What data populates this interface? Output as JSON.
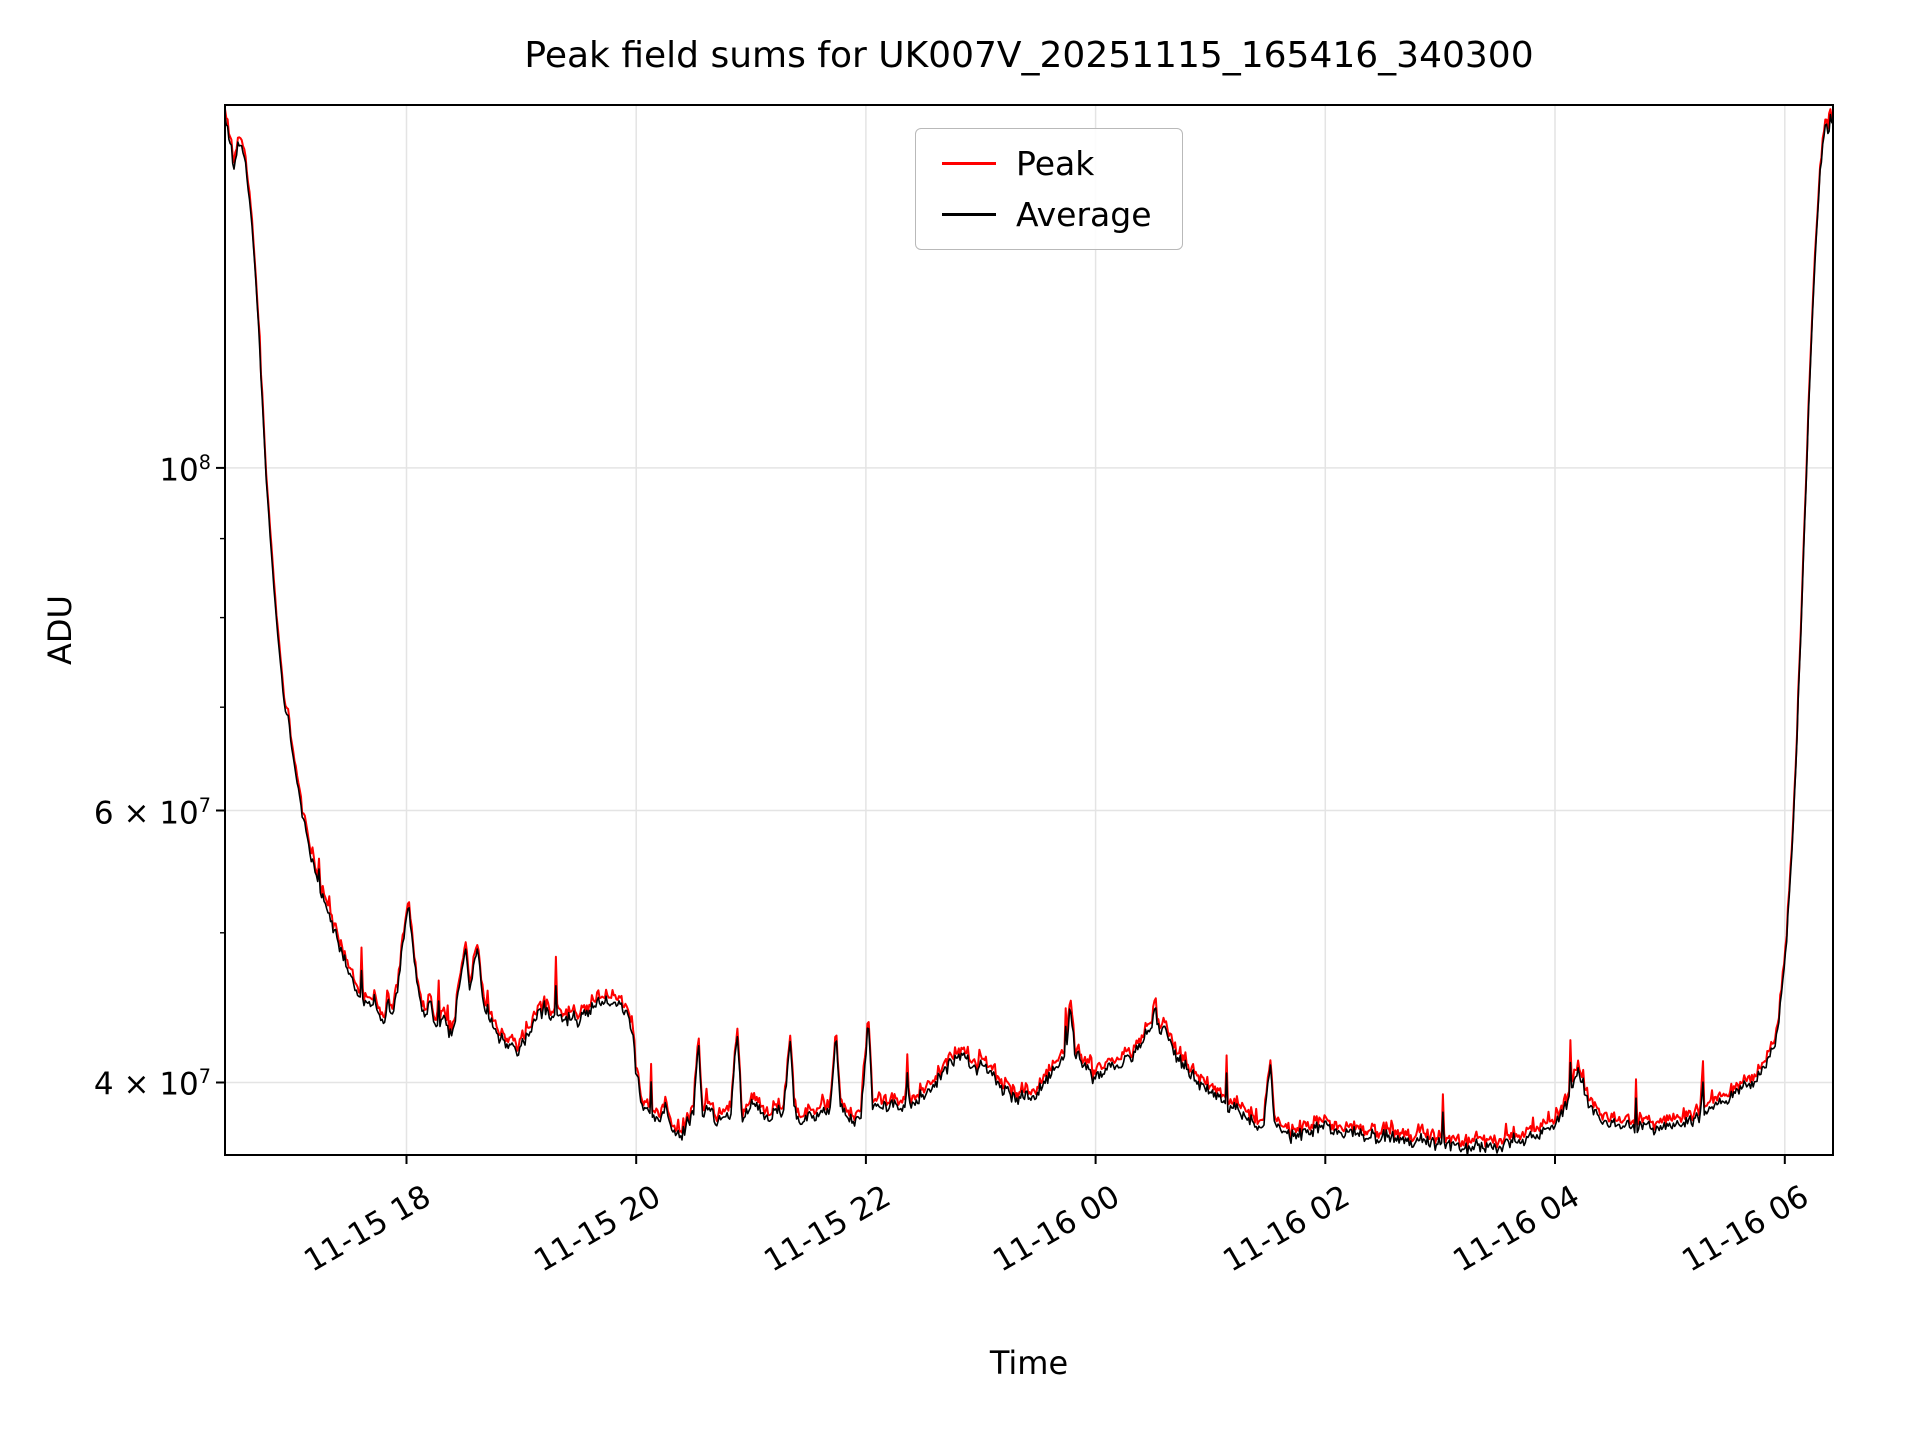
{
  "chart_data": {
    "type": "line",
    "title": "Peak field sums for UK007V_20251115_165416_340300",
    "xlabel": "Time",
    "ylabel": "ADU",
    "yscale": "log",
    "grid": true,
    "legend_position": "upper center",
    "x_domain_hours": [
      16.42,
      30.42
    ],
    "y_range": [
      35900000,
      171800000
    ],
    "x_ticks": [
      {
        "t": 18,
        "label": "11-15 18"
      },
      {
        "t": 20,
        "label": "11-15 20"
      },
      {
        "t": 22,
        "label": "11-15 22"
      },
      {
        "t": 24,
        "label": "11-16 00"
      },
      {
        "t": 26,
        "label": "11-16 02"
      },
      {
        "t": 28,
        "label": "11-16 04"
      },
      {
        "t": 30,
        "label": "11-16 06"
      }
    ],
    "y_ticks": [
      {
        "value": 40000000,
        "label": "4 × 10^7"
      },
      {
        "value": 60000000,
        "label": "6 × 10^7"
      },
      {
        "value": 100000000,
        "label": "10^8"
      }
    ],
    "y_minor_ticks": [
      50000000,
      70000000,
      80000000,
      90000000
    ],
    "series": [
      {
        "name": "Peak",
        "color": "#ff0000"
      },
      {
        "name": "Average",
        "color": "#000000"
      }
    ],
    "peak_ratio": 1.006,
    "average_keypoints_1e7": [
      [
        16.42,
        16.9
      ],
      [
        16.47,
        16.2
      ],
      [
        16.5,
        15.6
      ],
      [
        16.53,
        16.3
      ],
      [
        16.58,
        16.1
      ],
      [
        16.62,
        15.3
      ],
      [
        16.66,
        14.2
      ],
      [
        16.7,
        12.8
      ],
      [
        16.74,
        11.2
      ],
      [
        16.78,
        9.8
      ],
      [
        16.82,
        8.9
      ],
      [
        16.86,
        8.1
      ],
      [
        16.9,
        7.5
      ],
      [
        16.94,
        7.0
      ],
      [
        16.97,
        6.9
      ],
      [
        17.0,
        6.6
      ],
      [
        17.04,
        6.3
      ],
      [
        17.08,
        6.05
      ],
      [
        17.12,
        5.85
      ],
      [
        17.16,
        5.65
      ],
      [
        17.2,
        5.5
      ],
      [
        17.26,
        5.3
      ],
      [
        17.32,
        5.15
      ],
      [
        17.38,
        5.0
      ],
      [
        17.44,
        4.85
      ],
      [
        17.5,
        4.72
      ],
      [
        17.56,
        4.6
      ],
      [
        17.62,
        4.52
      ],
      [
        17.68,
        4.48
      ],
      [
        17.72,
        4.55
      ],
      [
        17.76,
        4.42
      ],
      [
        17.8,
        4.38
      ],
      [
        17.84,
        4.5
      ],
      [
        17.88,
        4.42
      ],
      [
        17.92,
        4.6
      ],
      [
        17.96,
        4.85
      ],
      [
        18.0,
        5.1
      ],
      [
        18.02,
        5.18
      ],
      [
        18.05,
        4.95
      ],
      [
        18.08,
        4.7
      ],
      [
        18.12,
        4.5
      ],
      [
        18.16,
        4.42
      ],
      [
        18.2,
        4.52
      ],
      [
        18.24,
        4.38
      ],
      [
        18.28,
        4.3
      ],
      [
        18.32,
        4.42
      ],
      [
        18.36,
        4.32
      ],
      [
        18.4,
        4.28
      ],
      [
        18.44,
        4.5
      ],
      [
        18.48,
        4.72
      ],
      [
        18.52,
        4.88
      ],
      [
        18.55,
        4.6
      ],
      [
        18.58,
        4.75
      ],
      [
        18.62,
        4.9
      ],
      [
        18.65,
        4.65
      ],
      [
        18.68,
        4.45
      ],
      [
        18.72,
        4.38
      ],
      [
        18.78,
        4.32
      ],
      [
        18.84,
        4.26
      ],
      [
        18.9,
        4.22
      ],
      [
        18.96,
        4.2
      ],
      [
        19.02,
        4.25
      ],
      [
        19.08,
        4.32
      ],
      [
        19.14,
        4.4
      ],
      [
        19.2,
        4.48
      ],
      [
        19.26,
        4.4
      ],
      [
        19.32,
        4.45
      ],
      [
        19.38,
        4.38
      ],
      [
        19.44,
        4.42
      ],
      [
        19.5,
        4.38
      ],
      [
        19.56,
        4.42
      ],
      [
        19.62,
        4.46
      ],
      [
        19.68,
        4.5
      ],
      [
        19.74,
        4.52
      ],
      [
        19.8,
        4.48
      ],
      [
        19.86,
        4.5
      ],
      [
        19.92,
        4.45
      ],
      [
        19.97,
        4.3
      ],
      [
        20.0,
        4.05
      ],
      [
        20.04,
        3.92
      ],
      [
        20.08,
        3.85
      ],
      [
        20.14,
        3.8
      ],
      [
        20.2,
        3.78
      ],
      [
        20.26,
        3.85
      ],
      [
        20.32,
        3.72
      ],
      [
        20.38,
        3.68
      ],
      [
        20.44,
        3.76
      ],
      [
        20.5,
        3.82
      ],
      [
        20.54,
        4.25
      ],
      [
        20.58,
        3.8
      ],
      [
        20.64,
        3.85
      ],
      [
        20.7,
        3.78
      ],
      [
        20.76,
        3.82
      ],
      [
        20.82,
        3.78
      ],
      [
        20.88,
        4.3
      ],
      [
        20.92,
        3.8
      ],
      [
        20.98,
        3.84
      ],
      [
        21.04,
        3.88
      ],
      [
        21.1,
        3.82
      ],
      [
        21.16,
        3.78
      ],
      [
        21.22,
        3.84
      ],
      [
        21.28,
        3.8
      ],
      [
        21.34,
        4.28
      ],
      [
        21.38,
        3.82
      ],
      [
        21.44,
        3.78
      ],
      [
        21.5,
        3.82
      ],
      [
        21.56,
        3.78
      ],
      [
        21.62,
        3.84
      ],
      [
        21.68,
        3.8
      ],
      [
        21.74,
        4.3
      ],
      [
        21.78,
        3.84
      ],
      [
        21.84,
        3.8
      ],
      [
        21.9,
        3.78
      ],
      [
        21.96,
        3.82
      ],
      [
        22.02,
        4.38
      ],
      [
        22.06,
        3.84
      ],
      [
        22.12,
        3.88
      ],
      [
        22.18,
        3.84
      ],
      [
        22.24,
        3.88
      ],
      [
        22.3,
        3.84
      ],
      [
        22.36,
        3.9
      ],
      [
        22.42,
        3.86
      ],
      [
        22.48,
        3.92
      ],
      [
        22.54,
        3.96
      ],
      [
        22.6,
        4.0
      ],
      [
        22.66,
        4.05
      ],
      [
        22.72,
        4.1
      ],
      [
        22.78,
        4.15
      ],
      [
        22.84,
        4.18
      ],
      [
        22.9,
        4.12
      ],
      [
        22.96,
        4.08
      ],
      [
        23.02,
        4.12
      ],
      [
        23.08,
        4.05
      ],
      [
        23.14,
        4.0
      ],
      [
        23.2,
        3.96
      ],
      [
        23.26,
        3.92
      ],
      [
        23.32,
        3.9
      ],
      [
        23.38,
        3.94
      ],
      [
        23.44,
        3.9
      ],
      [
        23.5,
        3.95
      ],
      [
        23.56,
        4.0
      ],
      [
        23.62,
        4.05
      ],
      [
        23.68,
        4.1
      ],
      [
        23.74,
        4.15
      ],
      [
        23.78,
        4.5
      ],
      [
        23.82,
        4.2
      ],
      [
        23.88,
        4.12
      ],
      [
        23.94,
        4.05
      ],
      [
        24.0,
        4.02
      ],
      [
        24.06,
        4.06
      ],
      [
        24.12,
        4.1
      ],
      [
        24.18,
        4.08
      ],
      [
        24.24,
        4.12
      ],
      [
        24.3,
        4.16
      ],
      [
        24.36,
        4.2
      ],
      [
        24.42,
        4.28
      ],
      [
        24.48,
        4.35
      ],
      [
        24.52,
        4.45
      ],
      [
        24.56,
        4.3
      ],
      [
        24.6,
        4.38
      ],
      [
        24.64,
        4.25
      ],
      [
        24.68,
        4.18
      ],
      [
        24.74,
        4.12
      ],
      [
        24.8,
        4.08
      ],
      [
        24.86,
        4.02
      ],
      [
        24.92,
        3.98
      ],
      [
        24.98,
        3.95
      ],
      [
        25.04,
        3.92
      ],
      [
        25.1,
        3.9
      ],
      [
        25.16,
        3.86
      ],
      [
        25.22,
        3.84
      ],
      [
        25.28,
        3.8
      ],
      [
        25.34,
        3.78
      ],
      [
        25.4,
        3.76
      ],
      [
        25.46,
        3.75
      ],
      [
        25.52,
        4.12
      ],
      [
        25.56,
        3.76
      ],
      [
        25.62,
        3.72
      ],
      [
        25.68,
        3.7
      ],
      [
        25.74,
        3.68
      ],
      [
        25.8,
        3.7
      ],
      [
        25.86,
        3.72
      ],
      [
        25.92,
        3.74
      ],
      [
        25.98,
        3.76
      ],
      [
        26.04,
        3.74
      ],
      [
        26.1,
        3.72
      ],
      [
        26.16,
        3.7
      ],
      [
        26.22,
        3.72
      ],
      [
        26.28,
        3.7
      ],
      [
        26.34,
        3.68
      ],
      [
        26.4,
        3.7
      ],
      [
        26.46,
        3.68
      ],
      [
        26.52,
        3.7
      ],
      [
        26.58,
        3.68
      ],
      [
        26.64,
        3.66
      ],
      [
        26.7,
        3.68
      ],
      [
        26.76,
        3.66
      ],
      [
        26.82,
        3.68
      ],
      [
        26.88,
        3.66
      ],
      [
        26.94,
        3.64
      ],
      [
        27.0,
        3.66
      ],
      [
        27.06,
        3.64
      ],
      [
        27.12,
        3.66
      ],
      [
        27.18,
        3.63
      ],
      [
        27.24,
        3.62
      ],
      [
        27.3,
        3.64
      ],
      [
        27.36,
        3.62
      ],
      [
        27.42,
        3.64
      ],
      [
        27.48,
        3.62
      ],
      [
        27.54,
        3.64
      ],
      [
        27.6,
        3.66
      ],
      [
        27.66,
        3.68
      ],
      [
        27.72,
        3.66
      ],
      [
        27.78,
        3.68
      ],
      [
        27.84,
        3.7
      ],
      [
        27.9,
        3.72
      ],
      [
        27.96,
        3.74
      ],
      [
        28.02,
        3.78
      ],
      [
        28.08,
        3.85
      ],
      [
        28.14,
        3.95
      ],
      [
        28.2,
        4.08
      ],
      [
        28.24,
        4.0
      ],
      [
        28.28,
        3.9
      ],
      [
        28.34,
        3.82
      ],
      [
        28.4,
        3.78
      ],
      [
        28.46,
        3.76
      ],
      [
        28.52,
        3.75
      ],
      [
        28.58,
        3.74
      ],
      [
        28.64,
        3.76
      ],
      [
        28.7,
        3.74
      ],
      [
        28.76,
        3.75
      ],
      [
        28.82,
        3.74
      ],
      [
        28.88,
        3.73
      ],
      [
        28.94,
        3.75
      ],
      [
        29.0,
        3.76
      ],
      [
        29.06,
        3.75
      ],
      [
        29.12,
        3.77
      ],
      [
        29.18,
        3.78
      ],
      [
        29.24,
        3.8
      ],
      [
        29.3,
        3.82
      ],
      [
        29.36,
        3.85
      ],
      [
        29.42,
        3.88
      ],
      [
        29.48,
        3.9
      ],
      [
        29.54,
        3.92
      ],
      [
        29.6,
        3.95
      ],
      [
        29.66,
        3.98
      ],
      [
        29.72,
        4.0
      ],
      [
        29.78,
        4.05
      ],
      [
        29.84,
        4.1
      ],
      [
        29.9,
        4.2
      ],
      [
        29.94,
        4.35
      ],
      [
        29.98,
        4.6
      ],
      [
        30.02,
        5.0
      ],
      [
        30.06,
        5.6
      ],
      [
        30.1,
        6.5
      ],
      [
        30.14,
        7.8
      ],
      [
        30.18,
        9.5
      ],
      [
        30.22,
        11.5
      ],
      [
        30.26,
        13.5
      ],
      [
        30.3,
        15.2
      ],
      [
        30.33,
        16.2
      ],
      [
        30.36,
        16.8
      ],
      [
        30.38,
        16.4
      ],
      [
        30.4,
        16.9
      ],
      [
        30.42,
        16.6
      ]
    ],
    "noise": {
      "seed": 11,
      "points": 1250,
      "spike_prob": 0.012
    }
  }
}
